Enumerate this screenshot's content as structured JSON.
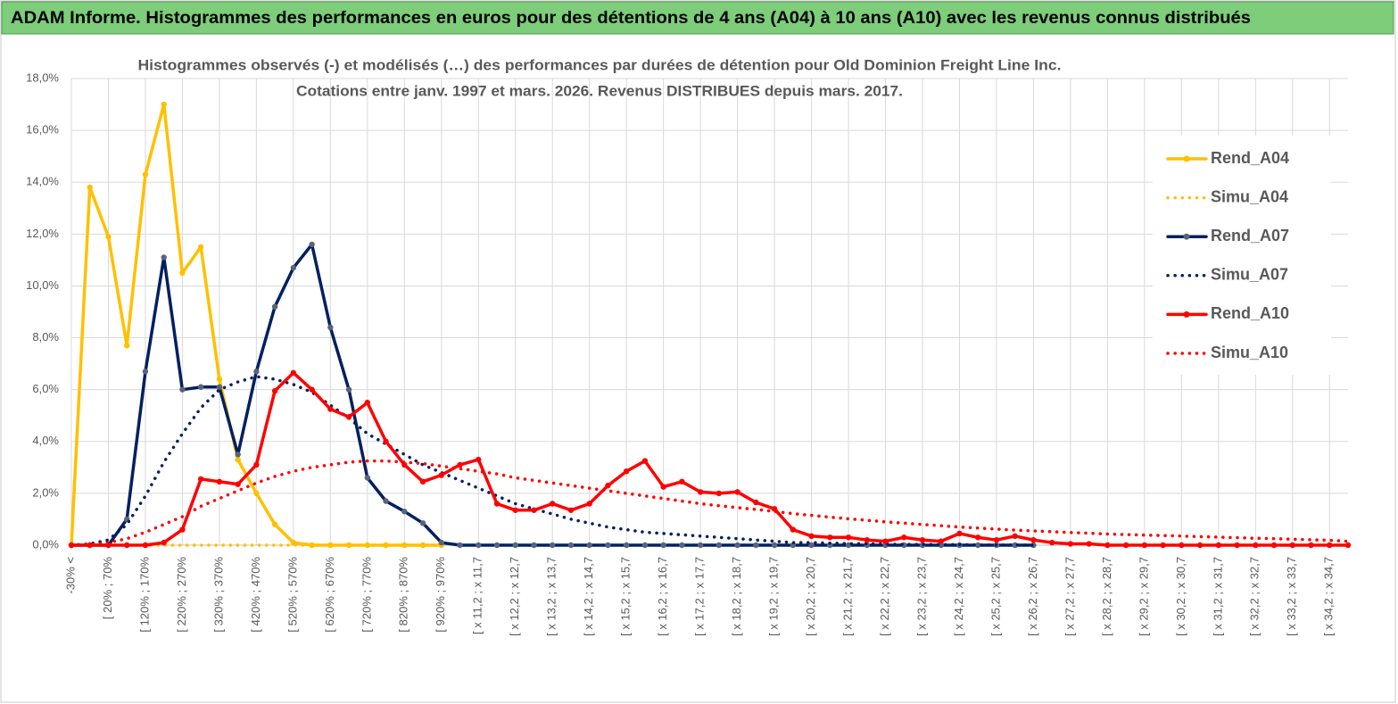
{
  "header": {
    "title": "ADAM Informe. Histogrammes des performances en euros pour des détentions de 4 ans (A04) à 10 ans (A10) avec les revenus connus distribués"
  },
  "chart_data": {
    "type": "line",
    "title": "Histogrammes observés (-) et modélisés (…) des performances par durées de détention pour Old Dominion Freight Line Inc.",
    "subtitle": "Cotations entre janv. 1997 et mars. 2026. Revenus DISTRIBUES depuis mars. 2017.",
    "categories": [
      "-30% <",
      null,
      "[ 20% ; 70%",
      null,
      "[ 120% ; 170%",
      null,
      "[ 220% ; 270%",
      null,
      "[ 320% ; 370%",
      null,
      "[ 420% ; 470%",
      null,
      "[ 520% ; 570%",
      null,
      "[ 620% ; 670%",
      null,
      "[ 720% ; 770%",
      null,
      "[ 820% ; 870%",
      null,
      "[ 920% ; 970%",
      null,
      "[ x 11,2 ; x 11,7",
      null,
      "[ x 12,2 ; x 12,7",
      null,
      "[ x 13,2 ; x 13,7",
      null,
      "[ x 14,2 ; x 14,7",
      null,
      "[ x 15,2 ; x 15,7",
      null,
      "[ x 16,2 ; x 16,7",
      null,
      "[ x 17,2 ; x 17,7",
      null,
      "[ x 18,2 ; x 18,7",
      null,
      "[ x 19,2 ; x 19,7",
      null,
      "[ x 20,2 ; x 20,7",
      null,
      "[ x 21,2 ; x 21,7",
      null,
      "[ x 22,2 ; x 22,7",
      null,
      "[ x 23,2 ; x 23,7",
      null,
      "[ x 24,2 ; x 24,7",
      null,
      "[ x 25,2 ; x 25,7",
      null,
      "[ x 26,2 ; x 26,7",
      null,
      "[ x 27,2 ; x 27,7",
      null,
      "[ x 28,2 ; x 28,7",
      null,
      "[ x 29,2 ; x 29,7",
      null,
      "[ x 30,2 ; x 30,7",
      null,
      "[ x 31,2 ; x 31,7",
      null,
      "[ x 32,2 ; x 32,7",
      null,
      "[ x 33,2 ; x 33,7",
      null,
      "[ x 34,2 ; x 34,7",
      null
    ],
    "series": [
      {
        "name": "Rend_A04",
        "color": "#ffc000",
        "style": "solid",
        "marker_color": "#ffc000",
        "values": [
          0,
          13.8,
          11.9,
          7.7,
          14.3,
          17.0,
          10.5,
          11.5,
          6.4,
          3.3,
          2.0,
          0.8,
          0.1,
          0,
          0,
          0,
          0,
          0,
          0,
          0,
          0,
          null,
          null,
          null,
          null,
          null,
          null,
          null,
          null,
          null,
          null,
          null,
          null,
          null,
          null,
          null,
          null,
          null,
          null,
          null,
          null,
          null,
          null,
          null,
          null,
          null,
          null,
          null,
          null,
          null,
          null,
          null,
          null,
          null,
          null,
          null,
          null,
          null,
          null,
          null,
          null,
          null,
          null,
          null,
          null,
          null,
          null,
          null,
          null,
          null
        ]
      },
      {
        "name": "Simu_A04",
        "color": "#ffc000",
        "style": "dotted",
        "values": [
          0,
          0,
          0,
          0,
          0,
          0,
          0,
          0,
          0,
          0,
          0,
          0,
          0,
          0,
          0,
          0,
          0,
          0,
          0,
          0,
          0,
          null,
          null,
          null,
          null,
          null,
          null,
          null,
          null,
          null,
          null,
          null,
          null,
          null,
          null,
          null,
          null,
          null,
          null,
          null,
          null,
          null,
          null,
          null,
          null,
          null,
          null,
          null,
          null,
          null,
          null,
          null,
          null,
          null,
          null,
          null,
          null,
          null,
          null,
          null,
          null,
          null,
          null,
          null,
          null,
          null,
          null,
          null,
          null,
          null
        ]
      },
      {
        "name": "Rend_A07",
        "color": "#002060",
        "style": "solid",
        "marker_color": "#59647a",
        "values": [
          0,
          0,
          0,
          1.0,
          6.7,
          11.1,
          6.0,
          6.1,
          6.1,
          3.5,
          6.7,
          9.2,
          10.7,
          11.6,
          8.4,
          6.0,
          2.6,
          1.7,
          1.3,
          0.85,
          0.1,
          0,
          0,
          0,
          0,
          0,
          0,
          0,
          0,
          0,
          0,
          0,
          0,
          0,
          0,
          0,
          0,
          0,
          0,
          0,
          0,
          0,
          0,
          0,
          0,
          0,
          0,
          0,
          0,
          0,
          0,
          0,
          0,
          null,
          null,
          null,
          null,
          null,
          null,
          null,
          null,
          null,
          null,
          null,
          null,
          null,
          null,
          null,
          null,
          null
        ]
      },
      {
        "name": "Simu_A07",
        "color": "#002060",
        "style": "dotted",
        "values": [
          0,
          0.05,
          0.2,
          0.8,
          1.9,
          3.2,
          4.3,
          5.3,
          6.0,
          6.3,
          6.5,
          6.4,
          6.2,
          5.9,
          5.4,
          4.9,
          4.3,
          3.9,
          3.5,
          3.1,
          2.8,
          2.5,
          2.2,
          1.9,
          1.6,
          1.4,
          1.2,
          1.0,
          0.85,
          0.7,
          0.6,
          0.5,
          0.45,
          0.4,
          0.35,
          0.3,
          0.25,
          0.2,
          0.15,
          0.1,
          0.1,
          0.08,
          0.06,
          0.05,
          0.04,
          0.03,
          0.03,
          0.02,
          0.02,
          0.01,
          0.01,
          0.01,
          0,
          null,
          null,
          null,
          null,
          null,
          null,
          null,
          null,
          null,
          null,
          null,
          null,
          null,
          null,
          null,
          null,
          null
        ]
      },
      {
        "name": "Rend_A10",
        "color": "#ff0000",
        "style": "solid",
        "marker_color": "#ff0000",
        "values": [
          0,
          0,
          0,
          0,
          0,
          0.1,
          0.6,
          2.55,
          2.45,
          2.35,
          3.1,
          5.95,
          6.65,
          6.0,
          5.25,
          4.95,
          5.5,
          4.0,
          3.1,
          2.45,
          2.7,
          3.1,
          3.3,
          1.6,
          1.35,
          1.35,
          1.6,
          1.35,
          1.6,
          2.3,
          2.85,
          3.25,
          2.25,
          2.45,
          2.05,
          2.0,
          2.05,
          1.65,
          1.4,
          0.6,
          0.35,
          0.3,
          0.3,
          0.2,
          0.15,
          0.3,
          0.2,
          0.15,
          0.45,
          0.3,
          0.2,
          0.35,
          0.2,
          0.1,
          0.05,
          0.05,
          0,
          0,
          0,
          0,
          0,
          0,
          0,
          0,
          0,
          0,
          0,
          0,
          0,
          0
        ]
      },
      {
        "name": "Simu_A10",
        "color": "#ff0000",
        "style": "dotted",
        "values": [
          0,
          0.02,
          0.1,
          0.25,
          0.5,
          0.8,
          1.1,
          1.5,
          1.8,
          2.1,
          2.4,
          2.65,
          2.85,
          3.0,
          3.1,
          3.2,
          3.25,
          3.25,
          3.2,
          3.15,
          3.05,
          2.95,
          2.85,
          2.75,
          2.6,
          2.5,
          2.4,
          2.3,
          2.2,
          2.1,
          2.0,
          1.9,
          1.8,
          1.7,
          1.6,
          1.52,
          1.45,
          1.38,
          1.3,
          1.22,
          1.15,
          1.08,
          1.02,
          0.96,
          0.9,
          0.85,
          0.8,
          0.75,
          0.7,
          0.66,
          0.62,
          0.58,
          0.55,
          0.52,
          0.49,
          0.46,
          0.43,
          0.41,
          0.39,
          0.37,
          0.35,
          0.33,
          0.31,
          0.29,
          0.27,
          0.25,
          0.23,
          0.21,
          0.19,
          0.15
        ]
      }
    ],
    "ylim": [
      0,
      18
    ],
    "yticks": [
      {
        "value": 0,
        "label": "0,0%"
      },
      {
        "value": 2,
        "label": "2,0%"
      },
      {
        "value": 4,
        "label": "4,0%"
      },
      {
        "value": 6,
        "label": "6,0%"
      },
      {
        "value": 8,
        "label": "8,0%"
      },
      {
        "value": 10,
        "label": "10,0%"
      },
      {
        "value": 12,
        "label": "12,0%"
      },
      {
        "value": 14,
        "label": "14,0%"
      },
      {
        "value": 16,
        "label": "16,0%"
      },
      {
        "value": 18,
        "label": "18,0%"
      }
    ],
    "grid": true,
    "legend": "right"
  }
}
